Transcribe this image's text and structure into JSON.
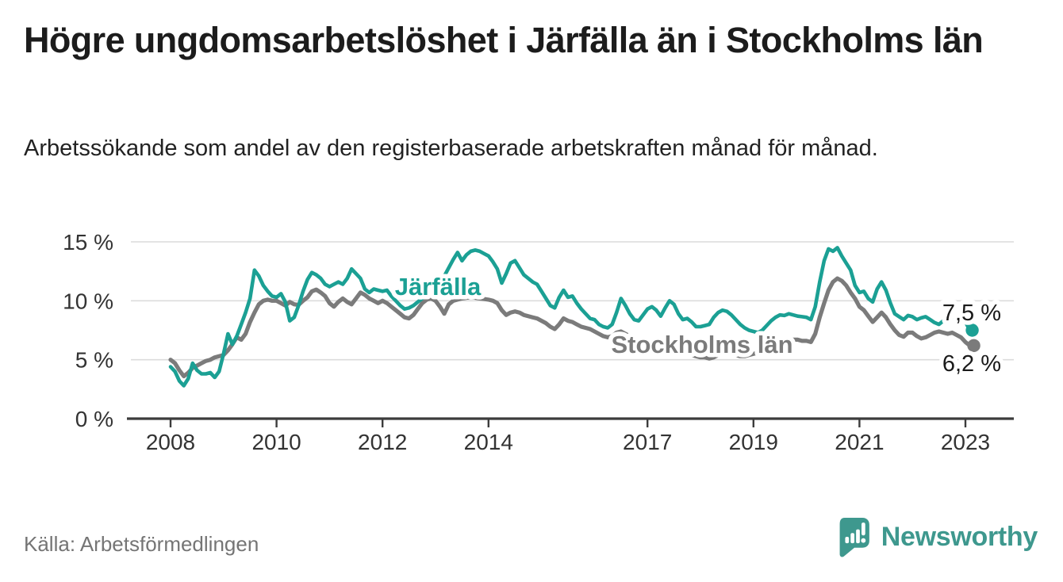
{
  "title": "Högre ungdomsarbetslöshet i Järfälla än i Stockholms län",
  "subtitle": "Arbetssökande som andel av den registerbaserade arbetskraften månad för månad.",
  "source": "Källa: Arbetsförmedlingen",
  "logo": {
    "name": "Newsworthy",
    "icon": "newsworthy-speech-bubble-bar-chart-icon"
  },
  "colors": {
    "jarfalla": "#1ba094",
    "stockholm": "#7b7b7b",
    "grid": "#dcdcdc",
    "axis": "#3c3c3c",
    "tick_text": "#333333",
    "end_label_text": "#1a1a1a",
    "logo": "#3e988e",
    "source_text": "#757575"
  },
  "chart_data": {
    "type": "line",
    "title": "Högre ungdomsarbetslöshet i Järfälla än i Stockholms län",
    "xlabel": "",
    "ylabel": "Arbetssökande som andel av den registerbaserade arbetskraften",
    "x_unit": "month",
    "x_start_year": 2008.0,
    "x_end_year": 2023.083,
    "x_ticks": [
      2008,
      2010,
      2012,
      2014,
      2017,
      2019,
      2021,
      2023
    ],
    "y_tick_labels": [
      "0 %",
      "5 %",
      "10 %",
      "15 %"
    ],
    "y_tick_values": [
      0,
      5,
      10,
      15
    ],
    "ylim": [
      0,
      15.8
    ],
    "grid": true,
    "legend_position": "inline-labels",
    "series": [
      {
        "name": "Järfälla",
        "color_key": "jarfalla",
        "end_label": "7,5 %",
        "end_value": 7.5,
        "values": [
          4.4,
          4.0,
          3.2,
          2.8,
          3.4,
          4.7,
          4.1,
          3.8,
          3.8,
          3.9,
          3.5,
          4.0,
          5.5,
          7.2,
          6.3,
          7.0,
          8.0,
          9.0,
          10.2,
          12.6,
          12.1,
          11.3,
          10.8,
          10.4,
          10.3,
          10.6,
          9.9,
          8.3,
          8.6,
          9.6,
          10.8,
          11.8,
          12.4,
          12.2,
          11.9,
          11.4,
          11.2,
          11.4,
          11.6,
          11.4,
          11.9,
          12.7,
          12.3,
          11.9,
          11.0,
          10.7,
          11.0,
          10.9,
          10.8,
          10.9,
          10.4,
          10.0,
          9.6,
          9.3,
          9.4,
          9.6,
          9.9,
          10.2,
          10.5,
          10.7,
          11.0,
          11.5,
          12.1,
          12.8,
          13.5,
          14.1,
          13.4,
          13.9,
          14.2,
          14.3,
          14.2,
          14.0,
          13.8,
          13.3,
          12.7,
          11.5,
          12.3,
          13.2,
          13.4,
          12.8,
          12.2,
          11.9,
          11.6,
          11.4,
          10.8,
          10.2,
          9.6,
          9.4,
          10.3,
          10.9,
          10.3,
          10.4,
          9.8,
          9.3,
          8.9,
          8.5,
          8.4,
          8.0,
          7.8,
          7.7,
          8.0,
          9.0,
          10.2,
          9.6,
          8.9,
          8.4,
          8.3,
          8.8,
          9.3,
          9.5,
          9.2,
          8.7,
          9.4,
          10.0,
          9.7,
          8.9,
          8.4,
          8.5,
          8.2,
          7.8,
          7.8,
          7.9,
          8.0,
          8.6,
          9.0,
          9.2,
          9.1,
          8.8,
          8.4,
          8.0,
          7.7,
          7.5,
          7.4,
          7.3,
          7.5,
          7.9,
          8.3,
          8.6,
          8.8,
          8.75,
          8.9,
          8.8,
          8.7,
          8.65,
          8.6,
          8.4,
          9.5,
          11.6,
          13.4,
          14.4,
          14.2,
          14.5,
          13.8,
          13.2,
          12.6,
          11.3,
          10.7,
          10.8,
          10.2,
          9.9,
          11.0,
          11.6,
          10.9,
          9.8,
          8.9,
          8.65,
          8.4,
          8.75,
          8.65,
          8.4,
          8.55,
          8.65,
          8.4,
          8.15,
          8.0,
          8.3,
          8.55,
          8.6,
          8.55,
          8.65,
          8.2,
          7.5
        ]
      },
      {
        "name": "Stockholms län",
        "color_key": "stockholm",
        "end_label": "6,2 %",
        "end_value": 6.2,
        "values": [
          5.0,
          4.7,
          4.1,
          3.6,
          3.9,
          4.3,
          4.5,
          4.7,
          4.9,
          5.0,
          5.2,
          5.3,
          5.4,
          5.8,
          6.3,
          6.9,
          6.7,
          7.2,
          8.2,
          9.0,
          9.7,
          10.0,
          10.1,
          10.0,
          10.0,
          9.8,
          9.6,
          9.9,
          9.7,
          9.65,
          10.0,
          10.3,
          10.8,
          10.95,
          10.7,
          10.4,
          9.8,
          9.5,
          9.9,
          10.2,
          9.9,
          9.7,
          10.2,
          10.7,
          10.5,
          10.2,
          10.0,
          9.8,
          10.0,
          9.8,
          9.5,
          9.2,
          8.9,
          8.6,
          8.5,
          8.8,
          9.3,
          9.8,
          10.1,
          10.2,
          10.0,
          9.5,
          8.9,
          9.7,
          10.0,
          10.1,
          10.2,
          10.25,
          10.3,
          10.25,
          10.2,
          10.15,
          10.1,
          10.0,
          9.8,
          9.2,
          8.8,
          9.0,
          9.1,
          9.0,
          8.8,
          8.7,
          8.6,
          8.5,
          8.3,
          8.1,
          7.8,
          7.6,
          8.0,
          8.5,
          8.3,
          8.2,
          8.0,
          7.8,
          7.7,
          7.6,
          7.4,
          7.2,
          7.0,
          6.9,
          7.0,
          7.3,
          7.4,
          7.2,
          7.0,
          6.8,
          6.6,
          6.5,
          6.3,
          6.2,
          6.1,
          6.0,
          6.1,
          6.3,
          6.2,
          6.0,
          5.8,
          5.6,
          5.4,
          5.3,
          5.2,
          5.2,
          5.1,
          5.2,
          5.4,
          5.5,
          5.6,
          5.5,
          5.4,
          5.3,
          5.3,
          5.4,
          5.5,
          5.6,
          5.8,
          5.9,
          6.1,
          6.3,
          6.5,
          6.6,
          6.6,
          6.7,
          6.7,
          6.6,
          6.6,
          6.5,
          7.2,
          8.6,
          9.8,
          10.9,
          11.6,
          11.9,
          11.7,
          11.3,
          10.7,
          10.2,
          9.5,
          9.2,
          8.7,
          8.2,
          8.6,
          9.0,
          8.6,
          8.0,
          7.5,
          7.1,
          6.95,
          7.3,
          7.3,
          7.0,
          6.8,
          6.9,
          7.1,
          7.3,
          7.4,
          7.3,
          7.2,
          7.3,
          7.1,
          6.9,
          6.5,
          6.2
        ]
      }
    ]
  }
}
